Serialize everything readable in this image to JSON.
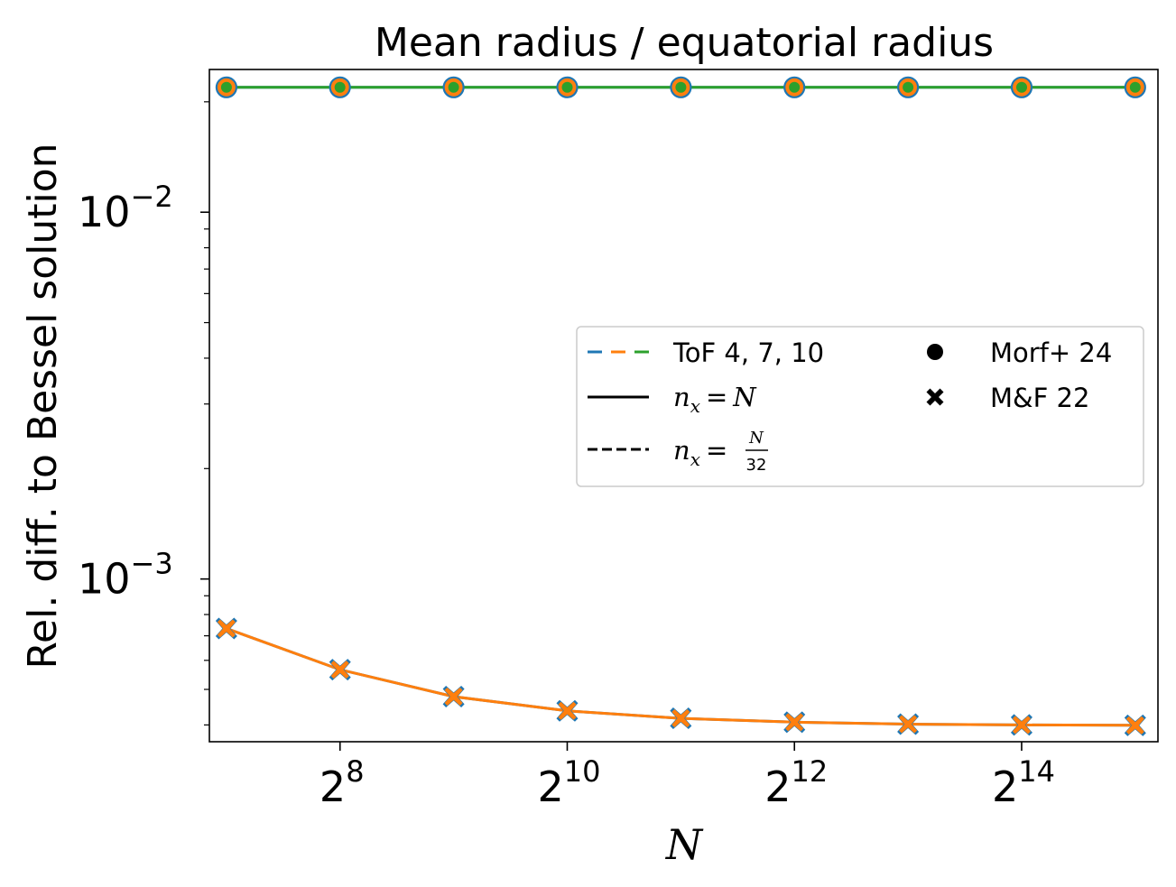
{
  "chart_data": {
    "type": "line",
    "title": "Mean radius / equatorial radius",
    "xlabel": "N",
    "ylabel": "Rel. diff. to Bessel solution",
    "xscale": "log2",
    "yscale": "log10",
    "xlim_exponent": [
      6.85,
      15.2
    ],
    "ylim": [
      0.00036,
      0.0245
    ],
    "x_ticks": [
      {
        "base": "2",
        "exp": "8"
      },
      {
        "base": "2",
        "exp": "10"
      },
      {
        "base": "2",
        "exp": "12"
      },
      {
        "base": "2",
        "exp": "14"
      }
    ],
    "y_ticks": [
      {
        "base": "10",
        "exp": "−2",
        "value": 0.01
      },
      {
        "base": "10",
        "exp": "−3",
        "value": 0.001
      }
    ],
    "x": [
      128,
      256,
      512,
      1024,
      2048,
      4096,
      8192,
      16384,
      32768
    ],
    "series": [
      {
        "color": "#1f77b4",
        "marker": "circle",
        "style": "solid",
        "values": [
          0.0219,
          0.0219,
          0.0219,
          0.0219,
          0.0219,
          0.0219,
          0.0219,
          0.0219,
          0.0219
        ]
      },
      {
        "color": "#2ca02c",
        "marker": "circle",
        "style": "solid",
        "values": [
          0.0219,
          0.0219,
          0.0219,
          0.0219,
          0.0219,
          0.0219,
          0.0219,
          0.0219,
          0.0219
        ]
      },
      {
        "color": "#1f77b4",
        "marker": "x",
        "style": "solid",
        "values": [
          0.000733,
          0.000566,
          0.000478,
          0.000437,
          0.000417,
          0.000407,
          0.000402,
          0.0004,
          0.000399
        ]
      },
      {
        "color": "#ff7f0e",
        "marker": "x",
        "style": "solid",
        "values": [
          0.000733,
          0.000566,
          0.000478,
          0.000437,
          0.000417,
          0.000407,
          0.000402,
          0.0004,
          0.000399
        ]
      }
    ],
    "legend": {
      "placement": "center-right",
      "entries_left": [
        {
          "label": "ToF 4, 7, 10",
          "swatch": "tricolor-dashed"
        },
        {
          "label_math": "n_x = N",
          "swatch": "solid-black"
        },
        {
          "label_math": "n_x = N/32",
          "swatch": "dashed-black"
        }
      ],
      "entries_right": [
        {
          "label": "Morf+ 24",
          "marker": "circle"
        },
        {
          "label": "M&F 22",
          "marker": "x"
        }
      ],
      "math": {
        "n": "n",
        "x": "x",
        "eq": "=",
        "N": "N",
        "num": "N",
        "den": "32"
      }
    },
    "colors": {
      "blue": "#1f77b4",
      "orange": "#ff7f0e",
      "green": "#2ca02c",
      "frame": "#000000"
    },
    "grid": false
  }
}
